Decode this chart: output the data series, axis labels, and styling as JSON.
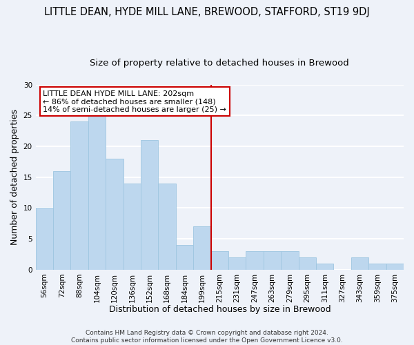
{
  "title": "LITTLE DEAN, HYDE MILL LANE, BREWOOD, STAFFORD, ST19 9DJ",
  "subtitle": "Size of property relative to detached houses in Brewood",
  "xlabel": "Distribution of detached houses by size in Brewood",
  "ylabel": "Number of detached properties",
  "bar_labels": [
    "56sqm",
    "72sqm",
    "88sqm",
    "104sqm",
    "120sqm",
    "136sqm",
    "152sqm",
    "168sqm",
    "184sqm",
    "199sqm",
    "215sqm",
    "231sqm",
    "247sqm",
    "263sqm",
    "279sqm",
    "295sqm",
    "311sqm",
    "327sqm",
    "343sqm",
    "359sqm",
    "375sqm"
  ],
  "bar_values": [
    10,
    16,
    24,
    25,
    18,
    14,
    21,
    14,
    4,
    7,
    3,
    2,
    3,
    3,
    3,
    2,
    1,
    0,
    2,
    1,
    1
  ],
  "bar_color": "#bdd7ee",
  "bar_edge_color": "#9ec6e0",
  "vline_x": 9.5,
  "vline_color": "#cc0000",
  "annotation_lines": [
    "LITTLE DEAN HYDE MILL LANE: 202sqm",
    "← 86% of detached houses are smaller (148)",
    "14% of semi-detached houses are larger (25) →"
  ],
  "ylim": [
    0,
    30
  ],
  "yticks": [
    0,
    5,
    10,
    15,
    20,
    25,
    30
  ],
  "footer_line1": "Contains HM Land Registry data © Crown copyright and database right 2024.",
  "footer_line2": "Contains public sector information licensed under the Open Government Licence v3.0.",
  "bg_color": "#eef2f9",
  "grid_color": "#ffffff",
  "title_fontsize": 10.5,
  "subtitle_fontsize": 9.5,
  "axis_label_fontsize": 9,
  "tick_fontsize": 7.5,
  "annot_fontsize": 8,
  "footer_fontsize": 6.5
}
